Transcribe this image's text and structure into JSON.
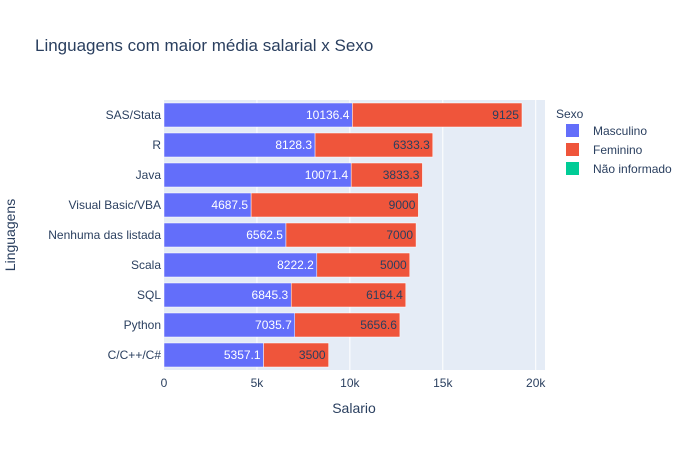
{
  "chart_data": {
    "type": "bar",
    "orientation": "horizontal",
    "barmode": "stack",
    "title": "Linguagens com maior média salarial x Sexo",
    "xlabel": "Salario",
    "ylabel": "Linguagens",
    "xlim": [
      0,
      20500
    ],
    "x_ticks": [
      0,
      5000,
      10000,
      15000,
      20000
    ],
    "x_tick_labels": [
      "0",
      "5k",
      "10k",
      "15k",
      "20k"
    ],
    "categories": [
      "SAS/Stata",
      "R",
      "Java",
      "Visual Basic/VBA",
      "Nenhuma das listada",
      "Scala",
      "SQL",
      "Python",
      "C/C++/C#"
    ],
    "series": [
      {
        "name": "Masculino",
        "color": "#636efa",
        "values": [
          10136.4,
          8128.3,
          10071.4,
          4687.5,
          6562.5,
          8222.2,
          6845.3,
          7035.7,
          5357.1
        ],
        "labels": [
          "10136.4",
          "8128.3",
          "10071.4",
          "4687.5",
          "6562.5",
          "8222.2",
          "6845.3",
          "7035.7",
          "5357.1"
        ],
        "label_color": "#ffffff"
      },
      {
        "name": "Feminino",
        "color": "#ef553b",
        "values": [
          9125,
          6333.3,
          3833.3,
          9000,
          7000,
          5000,
          6164.4,
          5656.6,
          3500
        ],
        "labels": [
          "9125",
          "6333.3",
          "3833.3",
          "9000",
          "7000",
          "5000",
          "6164.4",
          "5656.6",
          "3500"
        ],
        "label_color": "#2a3f5f"
      },
      {
        "name": "Não informado",
        "color": "#00cc96",
        "values": [
          0,
          0,
          0,
          0,
          0,
          0,
          0,
          0,
          0
        ],
        "labels": [],
        "label_color": "#2a3f5f"
      }
    ],
    "legend": {
      "title": "Sexo",
      "position": "right"
    },
    "grid": true,
    "plot_bg": "#e5ecf6"
  }
}
